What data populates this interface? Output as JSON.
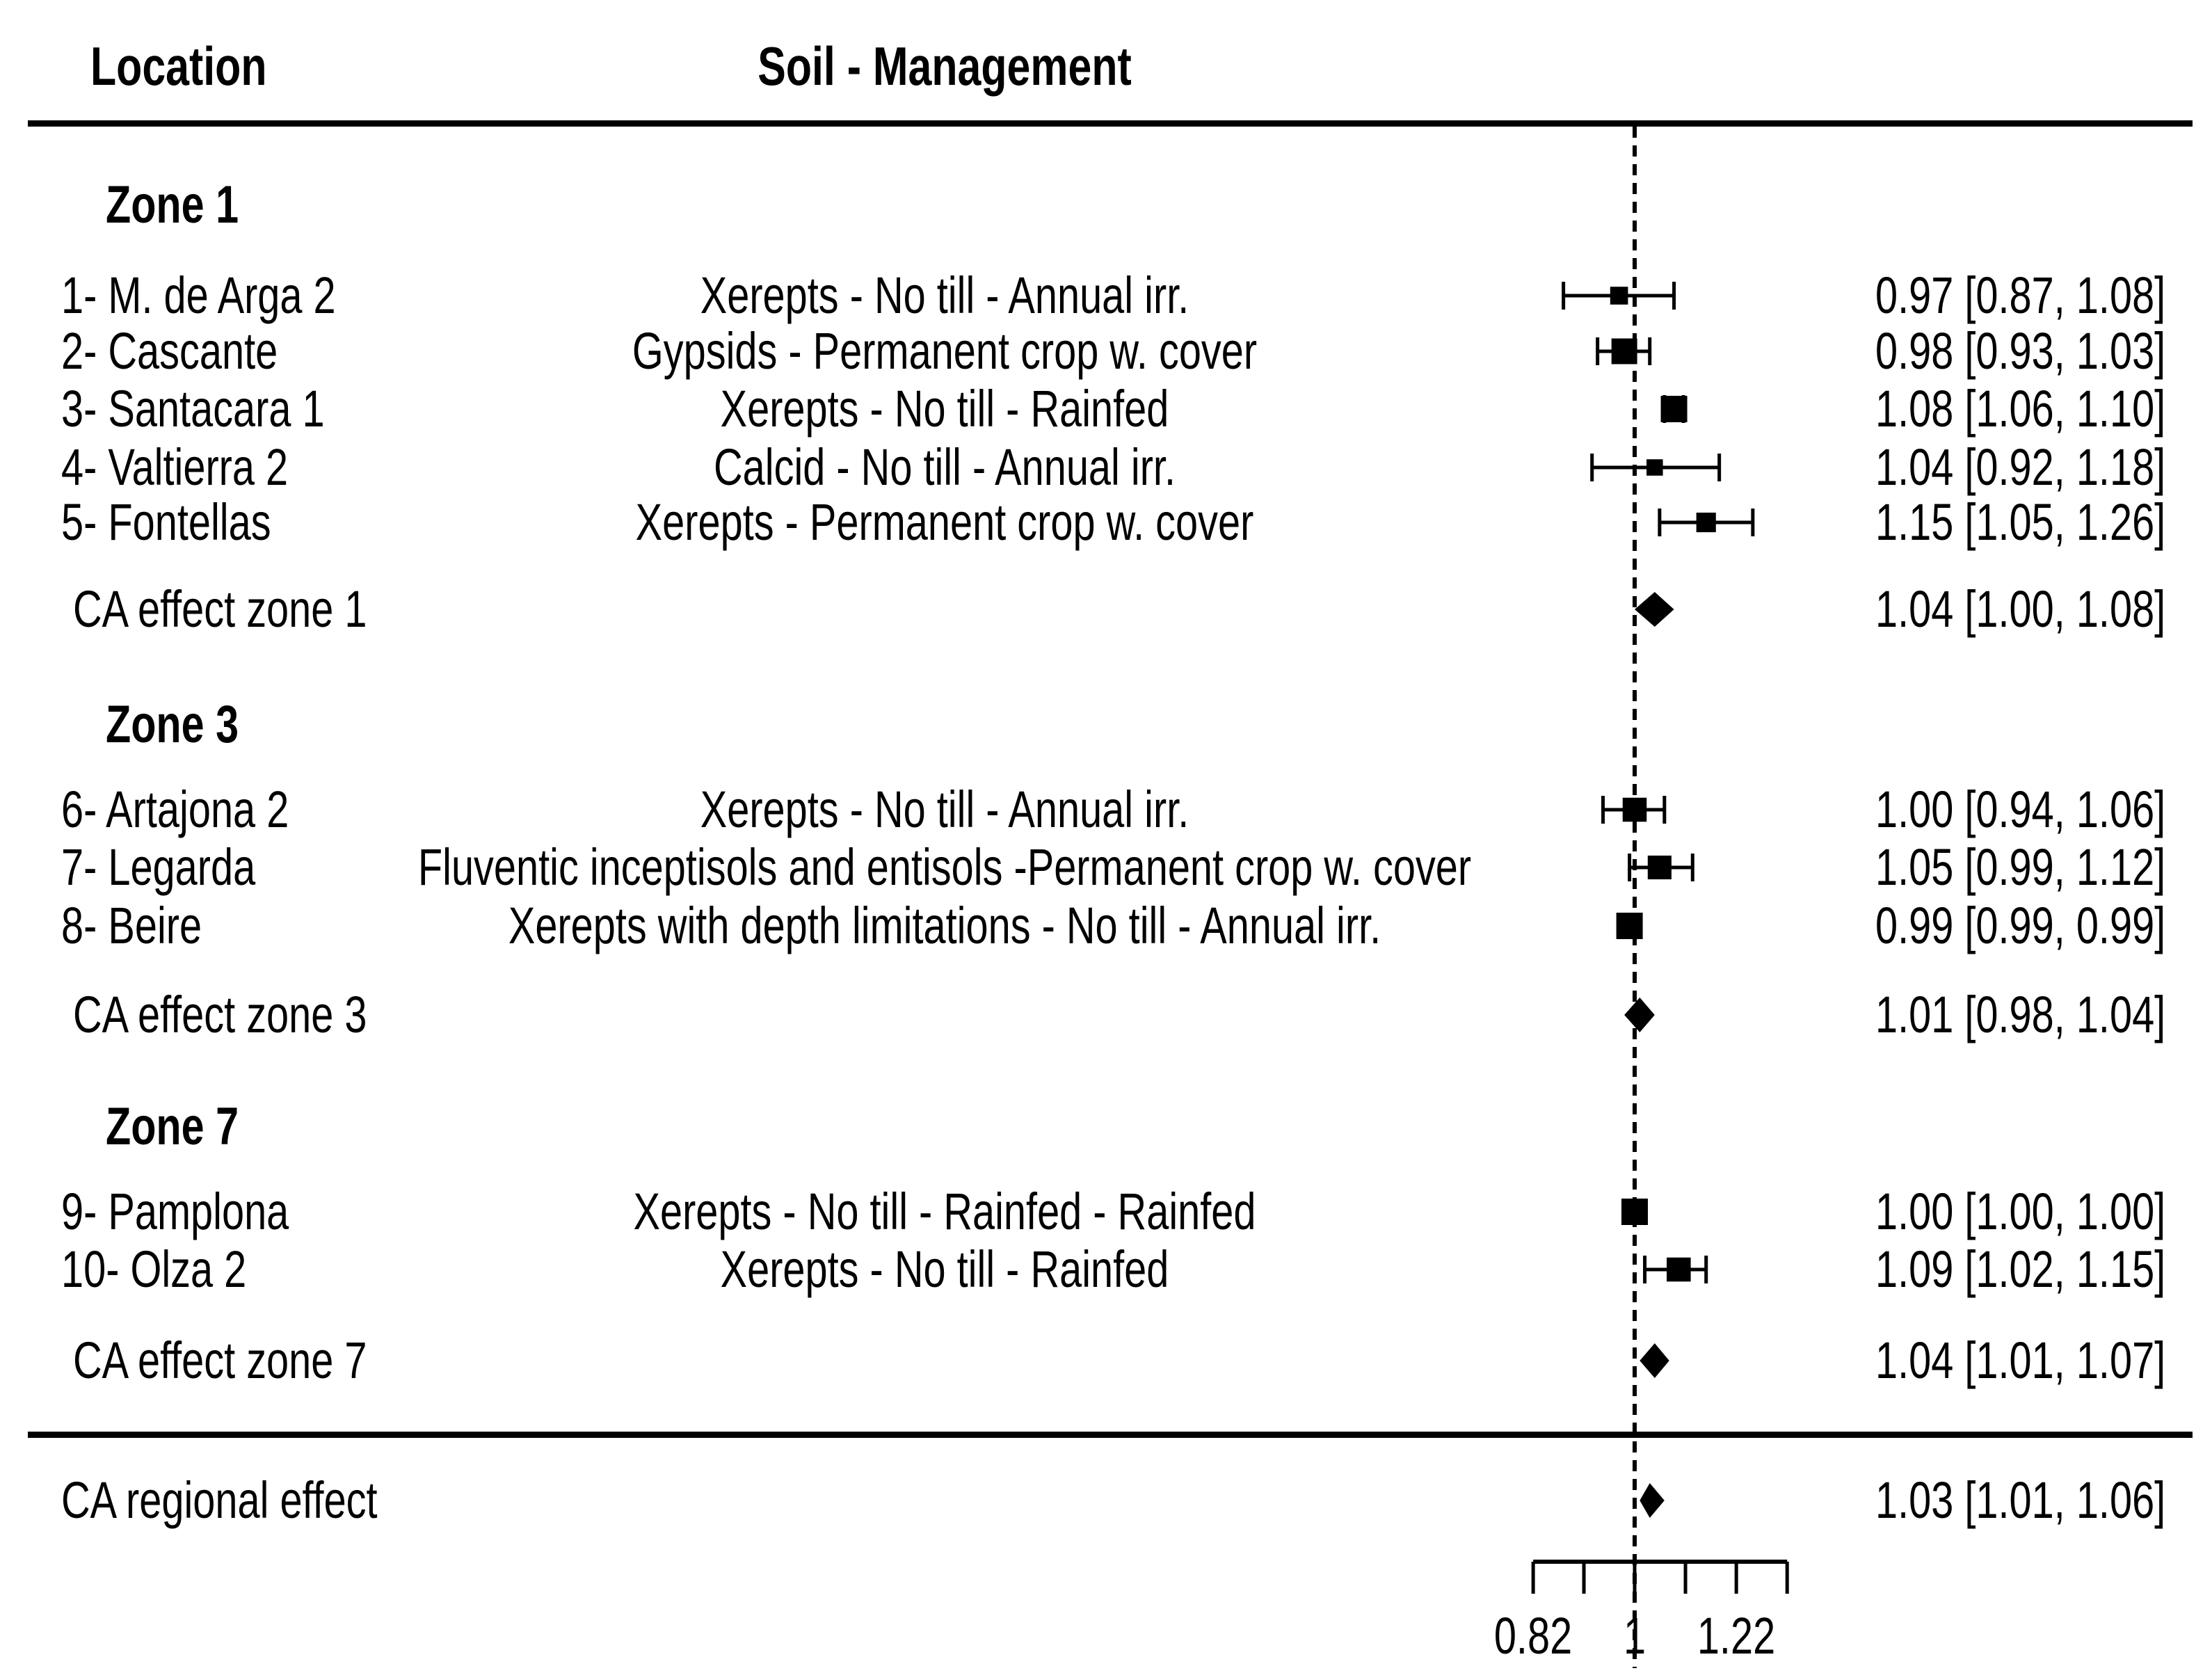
{
  "header": {
    "location_label": "Location",
    "soil_management_label": "Soil - Management"
  },
  "colors": {
    "foreground": "#000000",
    "background": "#ffffff"
  },
  "chart_data": {
    "type": "forest",
    "scale": "log",
    "reference_line": 1,
    "axis": {
      "tick_values": [
        0.82,
        0.9055,
        1.0,
        1.1045,
        1.22,
        1.3475
      ],
      "tick_labels": [
        {
          "value": 0.82,
          "text": "0.82"
        },
        {
          "value": 1.0,
          "text": "1"
        },
        {
          "value": 1.22,
          "text": "1.22"
        }
      ]
    },
    "groups": [
      {
        "title": "Zone 1",
        "studies": [
          {
            "label": "1- M. de Arga 2",
            "soil_management": "Xerepts - No till - Annual irr.",
            "estimate": 0.97,
            "ci_low": 0.87,
            "ci_high": 1.08,
            "ci_text": "0.97 [0.87, 1.08]"
          },
          {
            "label": "2- Cascante",
            "soil_management": "Gypsids - Permanent crop w. cover",
            "estimate": 0.98,
            "ci_low": 0.93,
            "ci_high": 1.03,
            "ci_text": "0.98 [0.93, 1.03]"
          },
          {
            "label": "3- Santacara 1",
            "soil_management": "Xerepts - No till - Rainfed",
            "estimate": 1.08,
            "ci_low": 1.06,
            "ci_high": 1.1,
            "ci_text": "1.08 [1.06, 1.10]"
          },
          {
            "label": "4- Valtierra 2",
            "soil_management": "Calcid - No till - Annual irr.",
            "estimate": 1.04,
            "ci_low": 0.92,
            "ci_high": 1.18,
            "ci_text": "1.04 [0.92, 1.18]"
          },
          {
            "label": "5- Fontellas",
            "soil_management": "Xerepts - Permanent crop w. cover",
            "estimate": 1.15,
            "ci_low": 1.05,
            "ci_high": 1.26,
            "ci_text": "1.15 [1.05, 1.26]"
          }
        ],
        "summary": {
          "label": "CA effect zone 1",
          "estimate": 1.04,
          "ci_low": 1.0,
          "ci_high": 1.08,
          "ci_text": "1.04 [1.00, 1.08]"
        }
      },
      {
        "title": "Zone 3",
        "studies": [
          {
            "label": "6- Artajona 2",
            "soil_management": "Xerepts - No till - Annual irr.",
            "estimate": 1.0,
            "ci_low": 0.94,
            "ci_high": 1.06,
            "ci_text": "1.00 [0.94, 1.06]"
          },
          {
            "label": "7- Legarda",
            "soil_management": "Fluventic inceptisols and entisols -Permanent crop w. cover",
            "estimate": 1.05,
            "ci_low": 0.99,
            "ci_high": 1.12,
            "ci_text": "1.05 [0.99, 1.12]"
          },
          {
            "label": "8- Beire",
            "soil_management": "Xerepts with depth limitations - No till - Annual irr.",
            "estimate": 0.99,
            "ci_low": 0.99,
            "ci_high": 0.99,
            "ci_text": "0.99 [0.99, 0.99]"
          }
        ],
        "summary": {
          "label": "CA effect zone 3",
          "estimate": 1.01,
          "ci_low": 0.98,
          "ci_high": 1.04,
          "ci_text": "1.01 [0.98, 1.04]"
        }
      },
      {
        "title": "Zone 7",
        "studies": [
          {
            "label": "9- Pamplona",
            "soil_management": "Xerepts - No till - Rainfed - Rainfed",
            "estimate": 1.0,
            "ci_low": 1.0,
            "ci_high": 1.0,
            "ci_text": "1.00 [1.00, 1.00]"
          },
          {
            "label": "10- Olza 2",
            "soil_management": "Xerepts - No till - Rainfed",
            "estimate": 1.09,
            "ci_low": 1.02,
            "ci_high": 1.15,
            "ci_text": "1.09 [1.02, 1.15]"
          }
        ],
        "summary": {
          "label": "CA effect zone 7",
          "estimate": 1.04,
          "ci_low": 1.01,
          "ci_high": 1.07,
          "ci_text": "1.04 [1.01, 1.07]"
        }
      }
    ],
    "overall": {
      "label": "CA regional effect",
      "estimate": 1.03,
      "ci_low": 1.01,
      "ci_high": 1.06,
      "ci_text": "1.03 [1.01, 1.06]"
    }
  }
}
